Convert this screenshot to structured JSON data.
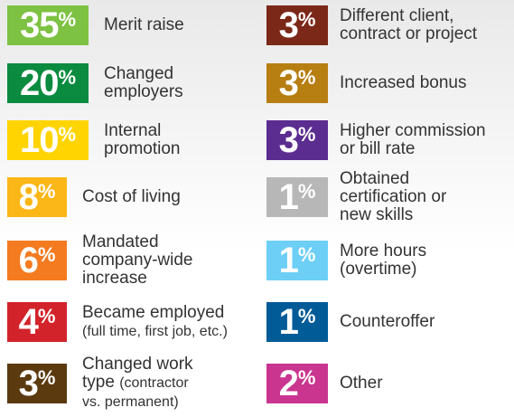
{
  "columns": [
    {
      "items": [
        {
          "percent": "35%",
          "color": "#7dc242",
          "lines": [
            "Merit raise"
          ]
        },
        {
          "percent": "20%",
          "color": "#0b8b3f",
          "lines": [
            "Changed",
            "employers"
          ]
        },
        {
          "percent": "10%",
          "color": "#ffd400",
          "lines": [
            "Internal",
            "promotion"
          ]
        },
        {
          "percent": "8%",
          "color": "#fbb617",
          "lines": [
            "Cost of living"
          ]
        },
        {
          "percent": "6%",
          "color": "#f47b20",
          "lines": [
            "Mandated",
            "company-wide",
            "increase"
          ]
        },
        {
          "percent": "4%",
          "color": "#d2232a",
          "lines": [
            "Became employed"
          ],
          "note": [
            "(full time, first job, etc.)"
          ]
        },
        {
          "percent": "3%",
          "color": "#5b3a0f",
          "lines": [
            "Changed work",
            "type"
          ],
          "note": [
            "(contractor",
            "vs. permanent)"
          ]
        }
      ]
    },
    {
      "items": [
        {
          "percent": "3%",
          "color": "#7b2818",
          "lines": [
            "Different client,",
            "contract or project"
          ]
        },
        {
          "percent": "3%",
          "color": "#b77e12",
          "lines": [
            "Increased bonus"
          ]
        },
        {
          "percent": "3%",
          "color": "#5c2d91",
          "lines": [
            "Higher commission",
            "or bill rate"
          ]
        },
        {
          "percent": "1%",
          "color": "#b7b7b7",
          "lines": [
            "Obtained",
            "certification or",
            "new skills"
          ]
        },
        {
          "percent": "1%",
          "color": "#6dcff6",
          "lines": [
            "More hours",
            "(overtime)"
          ]
        },
        {
          "percent": "1%",
          "color": "#005b97",
          "lines": [
            "Counteroffer"
          ]
        },
        {
          "percent": "2%",
          "color": "#c9358f",
          "lines": [
            "Other"
          ]
        }
      ]
    }
  ]
}
